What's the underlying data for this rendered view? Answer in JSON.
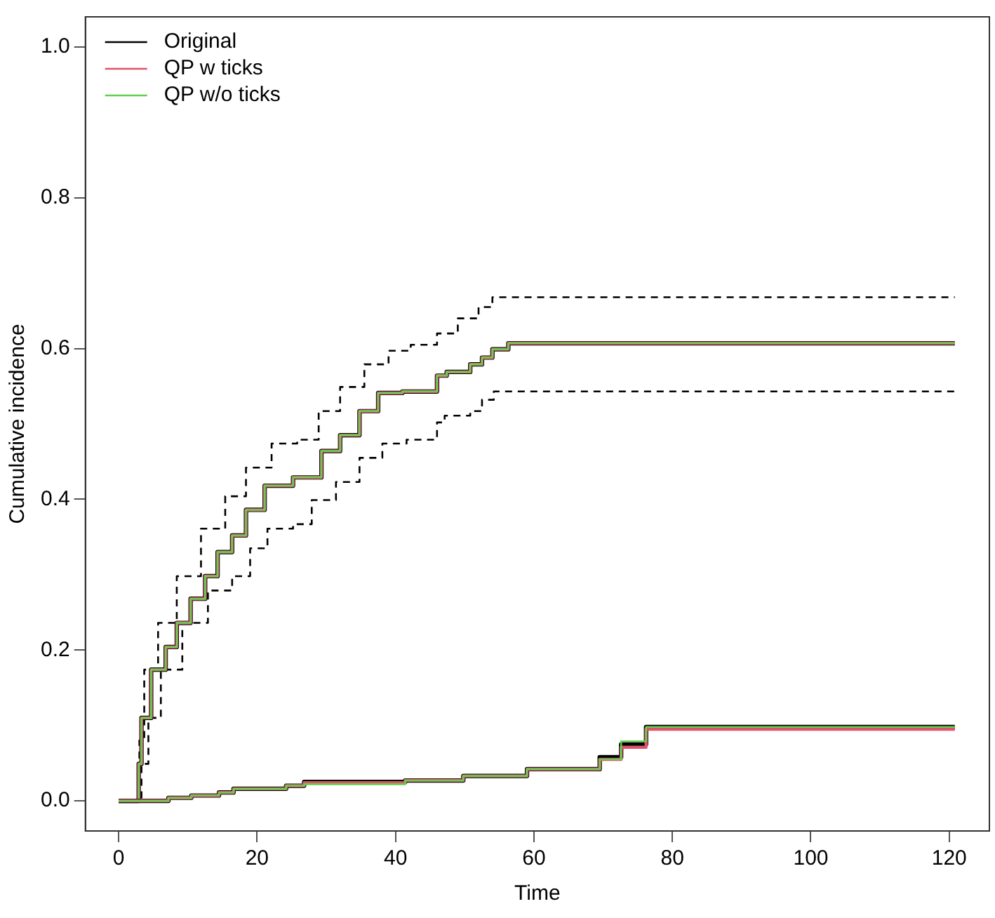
{
  "chart_data": {
    "type": "step",
    "xlabel": "Time",
    "ylabel": "Cumulative incidence",
    "xlim": [
      -4.8,
      125.8
    ],
    "ylim": [
      -0.04,
      1.04
    ],
    "xticks": [
      0,
      20,
      40,
      60,
      80,
      100,
      120
    ],
    "yticks": [
      {
        "value": 0,
        "label": "0.0"
      },
      {
        "value": 0.2,
        "label": "0.2"
      },
      {
        "value": 0.4,
        "label": "0.4"
      },
      {
        "value": 0.6,
        "label": "0.6"
      },
      {
        "value": 0.8,
        "label": "0.8"
      },
      {
        "value": 1,
        "label": "1.0"
      }
    ],
    "grid": false,
    "legend": "top left",
    "marker": "none",
    "series": [
      {
        "color": "#000000",
        "line_style": "dashed",
        "x": [
          0,
          3,
          3.7,
          5.7,
          8.4,
          11.9,
          15.4,
          18.4,
          22.1,
          25.8,
          28.9,
          32,
          35.5,
          39,
          42.2,
          46,
          49,
          52,
          54,
          56.5,
          120.8
        ],
        "values": [
          0,
          0,
          0.08,
          0.174,
          0.236,
          0.298,
          0.361,
          0.404,
          0.442,
          0.474,
          0.479,
          0.517,
          0.549,
          0.579,
          0.597,
          0.605,
          0.62,
          0.64,
          0.655,
          0.668,
          0.668
        ]
      },
      {
        "color": "#000000",
        "line_style": "dashed",
        "x": [
          0,
          3.3,
          4.3,
          6.1,
          9.2,
          12.9,
          16.4,
          19,
          21.5,
          25.2,
          27.9,
          31.4,
          34.8,
          38.1,
          41.6,
          46,
          47.1,
          50.8,
          52.5,
          54.2,
          56.3,
          120.8
        ],
        "values": [
          0,
          0,
          0.049,
          0.11,
          0.174,
          0.236,
          0.279,
          0.298,
          0.335,
          0.361,
          0.367,
          0.399,
          0.423,
          0.455,
          0.474,
          0.479,
          0.502,
          0.511,
          0.517,
          0.532,
          0.543,
          0.543
        ]
      },
      {
        "name": "Original",
        "color": "#000000",
        "x": [
          0,
          2.9,
          3.3,
          4.7,
          6.8,
          8.4,
          10.4,
          12.5,
          14.3,
          16.4,
          18.4,
          21.1,
          25.2,
          29.3,
          32,
          34.8,
          37.5,
          41,
          46,
          47.4,
          50.8,
          52.5,
          54,
          56.3,
          120.8
        ],
        "values": [
          0,
          0,
          0.049,
          0.11,
          0.174,
          0.204,
          0.236,
          0.268,
          0.298,
          0.33,
          0.352,
          0.386,
          0.418,
          0.429,
          0.464,
          0.485,
          0.517,
          0.541,
          0.543,
          0.564,
          0.569,
          0.579,
          0.588,
          0.599,
          0.607
        ]
      },
      {
        "name": "QP w ticks",
        "color": "#df536b",
        "x": [
          0,
          2.9,
          3.3,
          4.7,
          6.8,
          8.4,
          10.4,
          12.5,
          14.3,
          16.4,
          18.4,
          21.1,
          25.2,
          29.3,
          32,
          34.8,
          37.5,
          41,
          46,
          47.4,
          50.8,
          52.5,
          54,
          56.3,
          120.8
        ],
        "values": [
          0,
          0,
          0.049,
          0.11,
          0.174,
          0.204,
          0.236,
          0.268,
          0.298,
          0.33,
          0.352,
          0.386,
          0.418,
          0.429,
          0.464,
          0.485,
          0.517,
          0.541,
          0.543,
          0.564,
          0.569,
          0.579,
          0.588,
          0.599,
          0.607
        ]
      },
      {
        "name": "QP w/o ticks",
        "color": "#61d04f",
        "x": [
          0,
          2.9,
          3.3,
          4.7,
          6.8,
          8.4,
          10.4,
          12.5,
          14.3,
          16.4,
          18.4,
          21.1,
          25.2,
          29.3,
          32,
          34.8,
          37.5,
          41,
          46,
          47.4,
          50.8,
          52.5,
          54,
          56.3,
          120.8
        ],
        "values": [
          0,
          0,
          0.049,
          0.11,
          0.174,
          0.204,
          0.236,
          0.268,
          0.298,
          0.33,
          0.352,
          0.386,
          0.418,
          0.429,
          0.464,
          0.485,
          0.517,
          0.541,
          0.543,
          0.564,
          0.569,
          0.579,
          0.588,
          0.599,
          0.607
        ]
      },
      {
        "color": "#000000",
        "x": [
          0,
          7.2,
          10.5,
          14.5,
          16.6,
          24.2,
          26.8,
          41.4,
          49.8,
          59,
          69.5,
          72.6,
          76.2,
          120.8
        ],
        "values": [
          0,
          0,
          0.004,
          0.007,
          0.011,
          0.016,
          0.02,
          0.025,
          0.027,
          0.033,
          0.042,
          0.058,
          0.075,
          0.098
        ]
      },
      {
        "color": "#df536b",
        "x": [
          0,
          7.2,
          10.5,
          14.5,
          16.6,
          24.2,
          26.8,
          41.4,
          49.8,
          59,
          69.5,
          72.6,
          76.2,
          120.8
        ],
        "values": [
          0,
          0,
          0.004,
          0.007,
          0.011,
          0.016,
          0.02,
          0.024,
          0.027,
          0.033,
          0.042,
          0.055,
          0.071,
          0.095
        ]
      },
      {
        "color": "#61d04f",
        "x": [
          0,
          7.2,
          10.5,
          14.5,
          16.6,
          24.2,
          26.8,
          41.4,
          49.8,
          59,
          69.5,
          72.6,
          76.2,
          120.8
        ],
        "values": [
          0,
          0,
          0.004,
          0.007,
          0.011,
          0.016,
          0.02,
          0.022,
          0.027,
          0.033,
          0.042,
          0.055,
          0.079,
          0.098
        ]
      }
    ]
  }
}
